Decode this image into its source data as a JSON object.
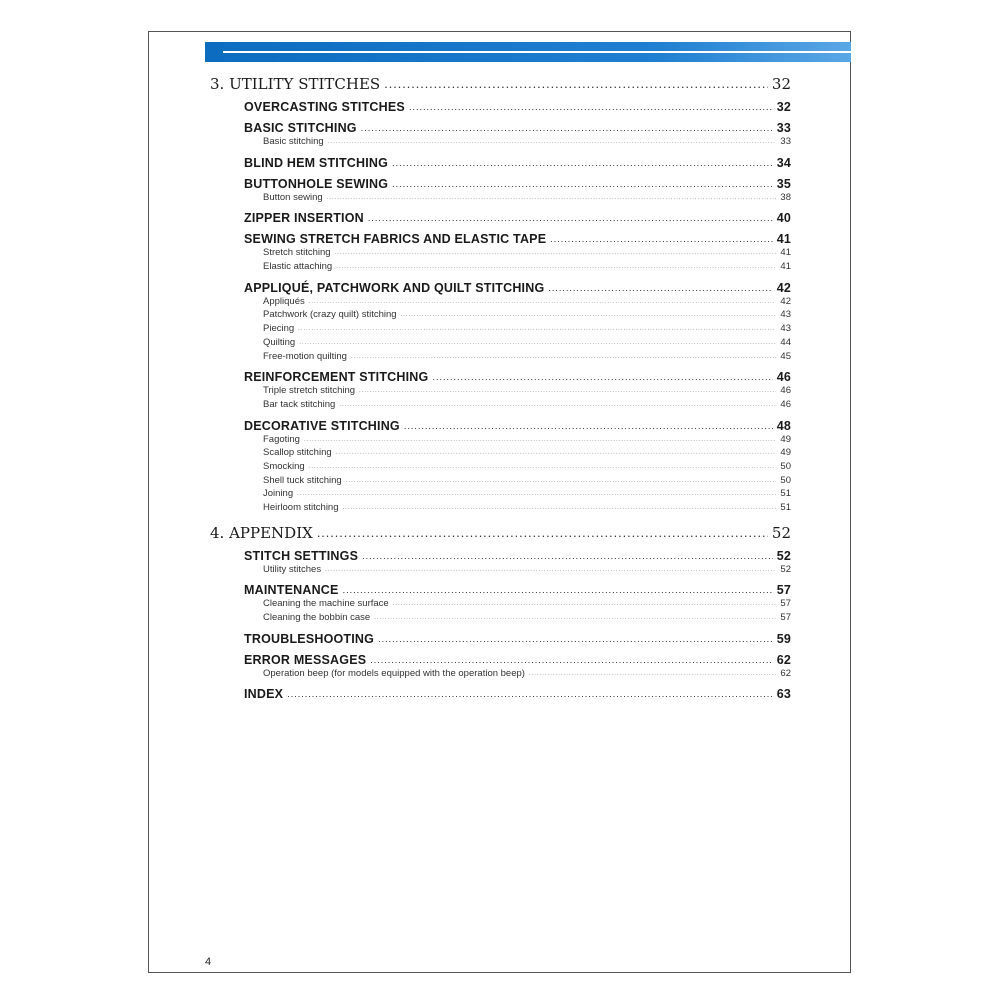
{
  "colors": {
    "header_bar": "#0b6cc0",
    "text": "#1a1a1a"
  },
  "toc": [
    {
      "level": "chapter",
      "title": "3. UTILITY STITCHES",
      "page": "32"
    },
    {
      "level": "section",
      "title": "OVERCASTING STITCHES",
      "page": "32"
    },
    {
      "level": "section",
      "title": "BASIC STITCHING",
      "page": "33"
    },
    {
      "level": "sub",
      "title": "Basic stitching",
      "page": "33"
    },
    {
      "level": "section",
      "title": "BLIND HEM STITCHING",
      "page": "34"
    },
    {
      "level": "section",
      "title": "BUTTONHOLE SEWING",
      "page": "35"
    },
    {
      "level": "sub",
      "title": "Button sewing",
      "page": "38"
    },
    {
      "level": "section",
      "title": "ZIPPER INSERTION",
      "page": "40"
    },
    {
      "level": "section",
      "title": "SEWING STRETCH FABRICS AND ELASTIC TAPE",
      "page": "41"
    },
    {
      "level": "sub",
      "title": "Stretch stitching",
      "page": "41"
    },
    {
      "level": "sub",
      "title": "Elastic attaching",
      "page": "41"
    },
    {
      "level": "section",
      "title": "APPLIQUÉ, PATCHWORK AND QUILT STITCHING",
      "page": "42"
    },
    {
      "level": "sub",
      "title": "Appliqués",
      "page": "42"
    },
    {
      "level": "sub",
      "title": "Patchwork (crazy quilt) stitching",
      "page": "43"
    },
    {
      "level": "sub",
      "title": "Piecing",
      "page": "43"
    },
    {
      "level": "sub",
      "title": "Quilting",
      "page": "44"
    },
    {
      "level": "sub",
      "title": "Free-motion quilting",
      "page": "45"
    },
    {
      "level": "section",
      "title": "REINFORCEMENT STITCHING",
      "page": "46"
    },
    {
      "level": "sub",
      "title": "Triple stretch stitching",
      "page": "46"
    },
    {
      "level": "sub",
      "title": "Bar tack stitching",
      "page": "46"
    },
    {
      "level": "section",
      "title": "DECORATIVE STITCHING",
      "page": "48"
    },
    {
      "level": "sub",
      "title": "Fagoting",
      "page": "49"
    },
    {
      "level": "sub",
      "title": "Scallop stitching",
      "page": "49"
    },
    {
      "level": "sub",
      "title": "Smocking",
      "page": "50"
    },
    {
      "level": "sub",
      "title": "Shell tuck stitching",
      "page": "50"
    },
    {
      "level": "sub",
      "title": "Joining",
      "page": "51"
    },
    {
      "level": "sub",
      "title": "Heirloom stitching",
      "page": "51"
    },
    {
      "level": "chapter",
      "title": "4. APPENDIX",
      "page": "52"
    },
    {
      "level": "section",
      "title": "STITCH SETTINGS",
      "page": "52"
    },
    {
      "level": "sub",
      "title": "Utility stitches",
      "page": "52"
    },
    {
      "level": "section",
      "title": "MAINTENANCE",
      "page": "57"
    },
    {
      "level": "sub",
      "title": "Cleaning the machine surface",
      "page": "57"
    },
    {
      "level": "sub",
      "title": "Cleaning the bobbin case",
      "page": "57"
    },
    {
      "level": "section",
      "title": "TROUBLESHOOTING",
      "page": "59"
    },
    {
      "level": "section",
      "title": "ERROR MESSAGES",
      "page": "62"
    },
    {
      "level": "sub",
      "title": "Operation beep (for models equipped with the operation beep)",
      "page": "62"
    },
    {
      "level": "section",
      "title": "INDEX",
      "page": "63"
    }
  ],
  "footer": {
    "page_number": "4"
  }
}
